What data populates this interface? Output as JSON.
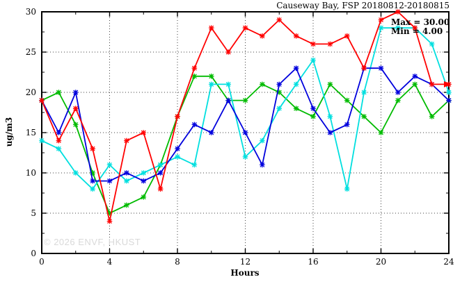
{
  "title": "Causeway Bay, FSP 20180812-20180815",
  "legend": {
    "max_label": "Max = 30.00",
    "min_label": "Min = 4.00"
  },
  "watermark": "© 2026 ENVF, HKUST",
  "chart_data": {
    "type": "line",
    "title": "Causeway Bay, FSP 20180812-20180815",
    "xlabel": "Hours",
    "ylabel": "ug/m3",
    "xlim": [
      0,
      24
    ],
    "ylim": [
      0,
      30
    ],
    "xticks": [
      0,
      4,
      8,
      12,
      16,
      20,
      24
    ],
    "yticks": [
      0,
      5,
      10,
      15,
      20,
      25,
      30
    ],
    "grid": true,
    "legend_position": "top-right-inside",
    "stats": {
      "max": 30.0,
      "min": 4.0
    },
    "x": [
      0,
      1,
      2,
      3,
      4,
      5,
      6,
      7,
      8,
      9,
      10,
      11,
      12,
      13,
      14,
      15,
      16,
      17,
      18,
      19,
      20,
      21,
      22,
      23,
      24
    ],
    "series": [
      {
        "name": "green",
        "color": "#00bb00",
        "values": [
          19,
          20,
          16,
          10,
          5,
          6,
          7,
          11,
          17,
          22,
          22,
          19,
          19,
          21,
          20,
          18,
          17,
          21,
          19,
          17,
          15,
          19,
          21,
          17,
          19
        ]
      },
      {
        "name": "cyan",
        "color": "#00dfdf",
        "values": [
          14,
          13,
          10,
          8,
          11,
          9,
          10,
          11,
          12,
          11,
          21,
          21,
          12,
          14,
          18,
          21,
          24,
          17,
          8,
          20,
          28,
          28,
          28,
          26,
          20
        ]
      },
      {
        "name": "blue",
        "color": "#0000dd",
        "values": [
          19,
          15,
          20,
          9,
          9,
          10,
          9,
          10,
          13,
          16,
          15,
          19,
          15,
          11,
          21,
          23,
          18,
          15,
          16,
          23,
          23,
          20,
          22,
          21,
          19
        ]
      },
      {
        "name": "red",
        "color": "#ff0000",
        "end_arrow": true,
        "values": [
          19,
          14,
          18,
          13,
          4,
          14,
          15,
          8,
          17,
          23,
          28,
          25,
          28,
          27,
          29,
          27,
          26,
          26,
          27,
          23,
          29,
          30,
          28,
          21,
          21
        ]
      }
    ]
  }
}
